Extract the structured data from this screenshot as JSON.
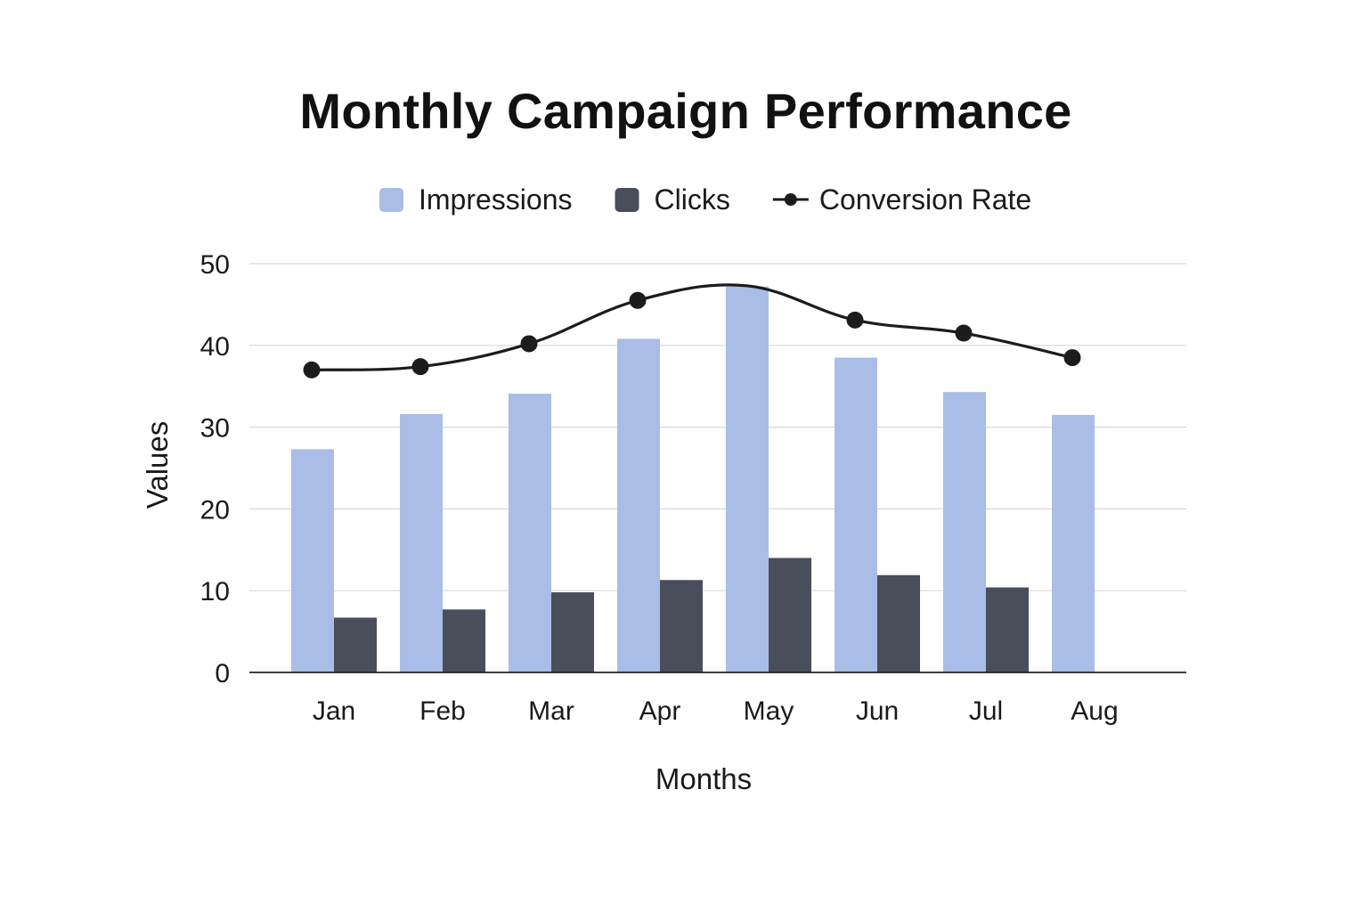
{
  "chart_data": {
    "type": "bar",
    "title": "Monthly Campaign Performance",
    "xlabel": "Months",
    "ylabel": "Values",
    "ylim": [
      0,
      50
    ],
    "yticks": [
      0,
      10,
      20,
      30,
      40,
      50
    ],
    "grid": true,
    "legend_position": "top-center",
    "categories": [
      "Jan",
      "Feb",
      "Mar",
      "Apr",
      "May",
      "Jun",
      "Jul",
      "Aug"
    ],
    "series": [
      {
        "name": "Impressions",
        "kind": "bar",
        "color": "#a9bde6",
        "values": [
          27.3,
          31.6,
          34.1,
          40.8,
          47.2,
          38.5,
          34.3,
          31.5
        ]
      },
      {
        "name": "Clicks",
        "kind": "bar",
        "color": "#4a4e5a",
        "values": [
          6.7,
          7.7,
          9.8,
          11.3,
          14.0,
          11.9,
          10.4,
          null
        ]
      },
      {
        "name": "Conversion Rate",
        "kind": "line",
        "color": "#1c1c1c",
        "values": [
          37.0,
          37.4,
          40.2,
          45.5,
          47.3,
          43.1,
          41.5,
          38.5
        ]
      }
    ]
  },
  "colors": {
    "grid": "#d9d9d9",
    "axis": "#222222",
    "text": "#1a1a1a"
  }
}
